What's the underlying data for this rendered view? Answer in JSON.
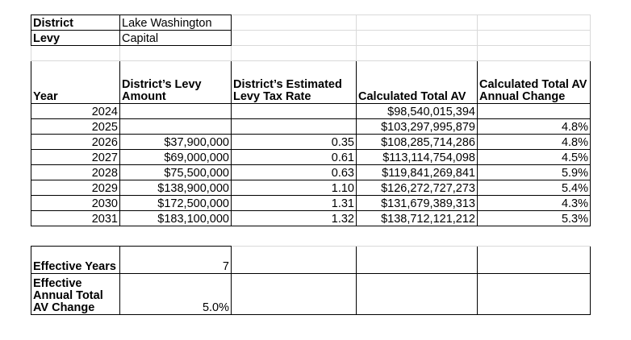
{
  "district": {
    "label": "District",
    "value": "Lake Washington"
  },
  "levy": {
    "label": "Levy",
    "value": "Capital"
  },
  "headers": {
    "year": "Year",
    "levy_amount": "District’s Levy Amount",
    "tax_rate": "District’s Estimated Levy Tax Rate",
    "total_av": "Calculated Total AV",
    "av_change": "Calculated Total AV Annual Change"
  },
  "rows": [
    {
      "year": "2024",
      "levy_amount": "",
      "tax_rate": "",
      "total_av": "$98,540,015,394",
      "av_change": ""
    },
    {
      "year": "2025",
      "levy_amount": "",
      "tax_rate": "",
      "total_av": "$103,297,995,879",
      "av_change": "4.8%"
    },
    {
      "year": "2026",
      "levy_amount": "$37,900,000",
      "tax_rate": "0.35",
      "total_av": "$108,285,714,286",
      "av_change": "4.8%"
    },
    {
      "year": "2027",
      "levy_amount": "$69,000,000",
      "tax_rate": "0.61",
      "total_av": "$113,114,754,098",
      "av_change": "4.5%"
    },
    {
      "year": "2028",
      "levy_amount": "$75,500,000",
      "tax_rate": "0.63",
      "total_av": "$119,841,269,841",
      "av_change": "5.9%"
    },
    {
      "year": "2029",
      "levy_amount": "$138,900,000",
      "tax_rate": "1.10",
      "total_av": "$126,272,727,273",
      "av_change": "5.4%"
    },
    {
      "year": "2030",
      "levy_amount": "$172,500,000",
      "tax_rate": "1.31",
      "total_av": "$131,679,389,313",
      "av_change": "4.3%"
    },
    {
      "year": "2031",
      "levy_amount": "$183,100,000",
      "tax_rate": "1.32",
      "total_av": "$138,712,121,212",
      "av_change": "5.3%"
    }
  ],
  "summary": {
    "effective_years": {
      "label": "Effective Years",
      "value": "7"
    },
    "effective_change": {
      "label": "Effective Annual Total AV Change",
      "value": "5.0%"
    }
  }
}
